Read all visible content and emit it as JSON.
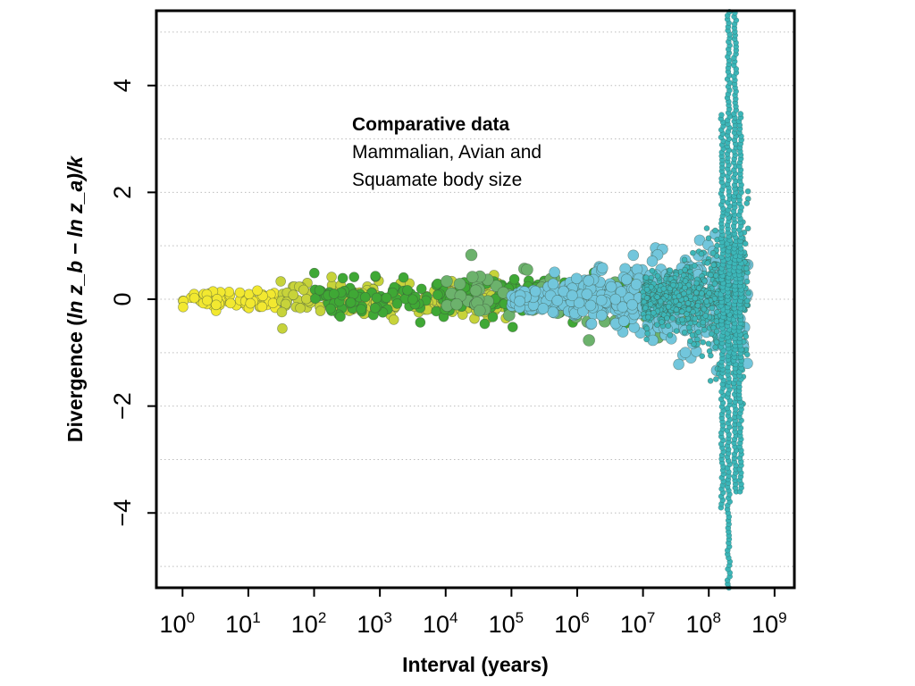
{
  "chart_data": {
    "type": "scatter",
    "xlabel": "Interval (years)",
    "ylabel_prefix": "Divergence (",
    "ylabel_math": "ln z_b − ln z_a",
    "ylabel_suffix": ")/k",
    "x_scale": "log10",
    "xlim": [
      0.4,
      2000000000
    ],
    "ylim": [
      -5.4,
      5.4
    ],
    "x_ticks": [
      {
        "base": "10",
        "exp": "0",
        "value": 1
      },
      {
        "base": "10",
        "exp": "1",
        "value": 10
      },
      {
        "base": "10",
        "exp": "2",
        "value": 100
      },
      {
        "base": "10",
        "exp": "3",
        "value": 1000
      },
      {
        "base": "10",
        "exp": "4",
        "value": 10000
      },
      {
        "base": "10",
        "exp": "5",
        "value": 100000
      },
      {
        "base": "10",
        "exp": "6",
        "value": 1000000
      },
      {
        "base": "10",
        "exp": "7",
        "value": 10000000
      },
      {
        "base": "10",
        "exp": "8",
        "value": 100000000
      },
      {
        "base": "10",
        "exp": "9",
        "value": 1000000000
      }
    ],
    "y_ticks": [
      {
        "label": "4",
        "value": 4
      },
      {
        "label": "2",
        "value": 2
      },
      {
        "label": "0",
        "value": 0
      },
      {
        "label": "−2",
        "value": -2
      },
      {
        "label": "−4",
        "value": -4
      }
    ],
    "grid": "horizontal dotted",
    "series_groups": [
      {
        "group": "yellow",
        "color": "#f2e830",
        "x_range": [
          1,
          30
        ],
        "y_spread": 0.2
      },
      {
        "group": "yellow-olive",
        "color": "#c7d33a",
        "x_range": [
          30,
          100000
        ],
        "y_spread": 0.35
      },
      {
        "group": "green",
        "color": "#3fa835",
        "x_range": [
          100,
          10000000
        ],
        "y_spread": 0.4
      },
      {
        "group": "sage",
        "color": "#6cb26c",
        "x_range": [
          10000,
          50000000
        ],
        "y_spread": 0.6
      },
      {
        "group": "light-blue",
        "color": "#72c6dc",
        "x_range": [
          100000,
          400000000
        ],
        "y_spread": 1.5
      },
      {
        "group": "teal",
        "color": "#3cb6b8",
        "x_range": [
          10000000,
          400000000
        ],
        "y_spread": 5.4
      }
    ]
  },
  "annotation": {
    "title": "Comparative data",
    "line1": "Mammalian, Avian and",
    "line2": "Squamate body size"
  }
}
